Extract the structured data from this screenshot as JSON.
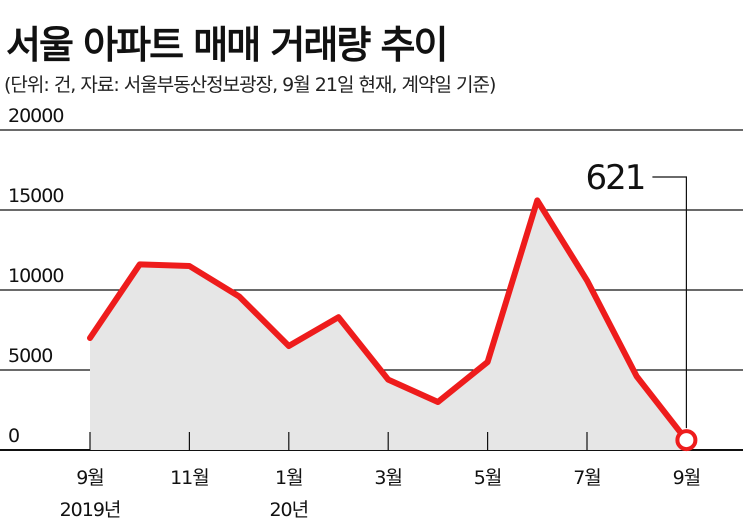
{
  "header": {
    "title": "서울 아파트 매매 거래량 추이",
    "subtitle": "(단위: 건, 자료: 서울부동산정보광장, 9월 21일 현재, 계약일 기준)"
  },
  "colors": {
    "line": "#ee1c1c",
    "area": "#e6e6e6",
    "grid": "#111111",
    "marker_fill": "#ffffff"
  },
  "chart_data": {
    "type": "area",
    "title": "서울 아파트 매매 거래량 추이",
    "unit": "건",
    "ylim": [
      0,
      20000
    ],
    "y_ticks": [
      0,
      5000,
      10000,
      15000,
      20000
    ],
    "y_tick_labels": [
      "0",
      "5000",
      "10000",
      "15000",
      "20000"
    ],
    "grid": "horizontal",
    "categories": [
      "2019-09",
      "2019-10",
      "2019-11",
      "2019-12",
      "2020-01",
      "2020-02",
      "2020-03",
      "2020-04",
      "2020-05",
      "2020-06",
      "2020-07",
      "2020-08",
      "2020-09"
    ],
    "x_tick_labels": [
      {
        "index": 0,
        "label": "9월",
        "sublabel": "2019년"
      },
      {
        "index": 2,
        "label": "11월",
        "sublabel": ""
      },
      {
        "index": 4,
        "label": "1월",
        "sublabel": "20년"
      },
      {
        "index": 6,
        "label": "3월",
        "sublabel": ""
      },
      {
        "index": 8,
        "label": "5월",
        "sublabel": ""
      },
      {
        "index": 10,
        "label": "7월",
        "sublabel": ""
      },
      {
        "index": 12,
        "label": "9월",
        "sublabel": ""
      }
    ],
    "series": [
      {
        "values": [
          7000,
          11600,
          11500,
          9600,
          6500,
          8300,
          4400,
          3000,
          5500,
          15600,
          10600,
          4600,
          621
        ]
      }
    ],
    "annotation": {
      "index": 12,
      "label": "621"
    }
  }
}
